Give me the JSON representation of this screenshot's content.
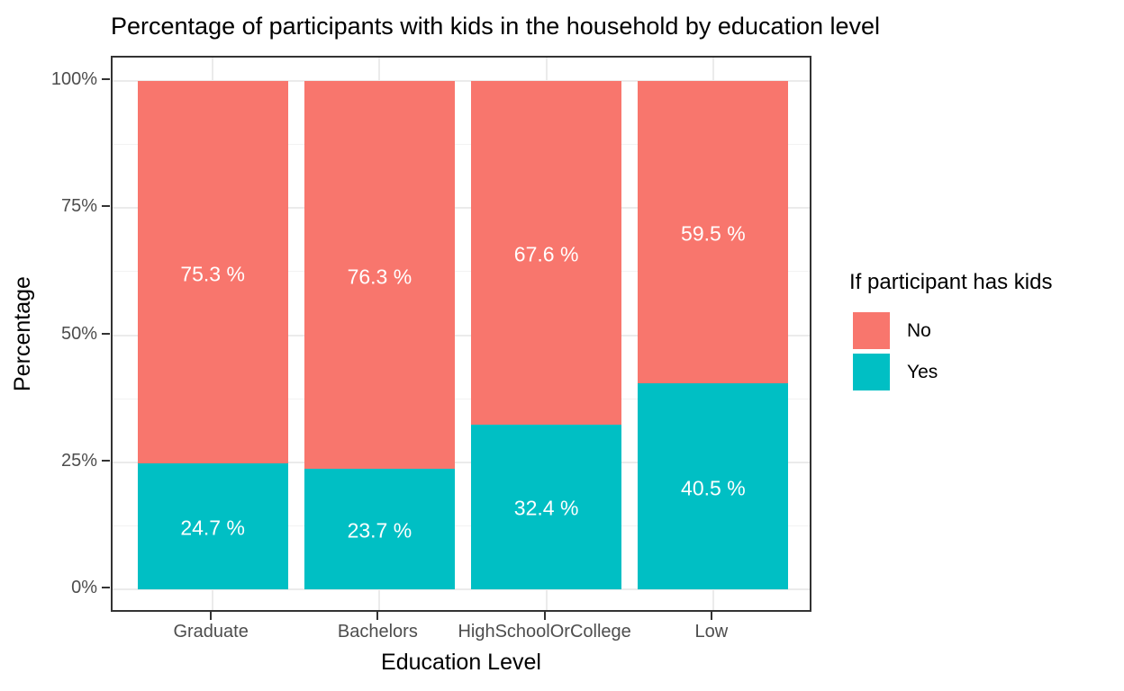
{
  "chart_data": {
    "type": "bar",
    "stacked": true,
    "orientation": "vertical",
    "title": "Percentage of participants with kids in the household by education level",
    "xlabel": "Education Level",
    "ylabel": "Percentage",
    "categories": [
      "Graduate",
      "Bachelors",
      "HighSchoolOrCollege",
      "Low"
    ],
    "series": [
      {
        "name": "No",
        "color": "#F8766D",
        "values": [
          75.3,
          76.3,
          67.6,
          59.5
        ],
        "labels": [
          "75.3 %",
          "76.3 %",
          "67.6 %",
          "59.5 %"
        ]
      },
      {
        "name": "Yes",
        "color": "#00BFC4",
        "values": [
          24.7,
          23.7,
          32.4,
          40.5
        ],
        "labels": [
          "24.7 %",
          "23.7 %",
          "32.4 %",
          "40.5 %"
        ]
      }
    ],
    "stack_order_bottom_to_top": [
      "Yes",
      "No"
    ],
    "ylim": [
      0,
      100
    ],
    "y_ticks": [
      {
        "value": 0,
        "label": "0%"
      },
      {
        "value": 25,
        "label": "25%"
      },
      {
        "value": 50,
        "label": "50%"
      },
      {
        "value": 75,
        "label": "75%"
      },
      {
        "value": 100,
        "label": "100%"
      },
      {
        "value": 12.5,
        "label": ""
      },
      {
        "value": 37.5,
        "label": ""
      },
      {
        "value": 62.5,
        "label": ""
      },
      {
        "value": 87.5,
        "label": ""
      }
    ],
    "grid": {
      "major": true,
      "minor": true,
      "background": "#ffffff"
    },
    "legend": {
      "title": "If participant has kids",
      "position": "right",
      "entries": [
        {
          "label": "No",
          "color": "#F8766D"
        },
        {
          "label": "Yes",
          "color": "#00BFC4"
        }
      ]
    }
  }
}
